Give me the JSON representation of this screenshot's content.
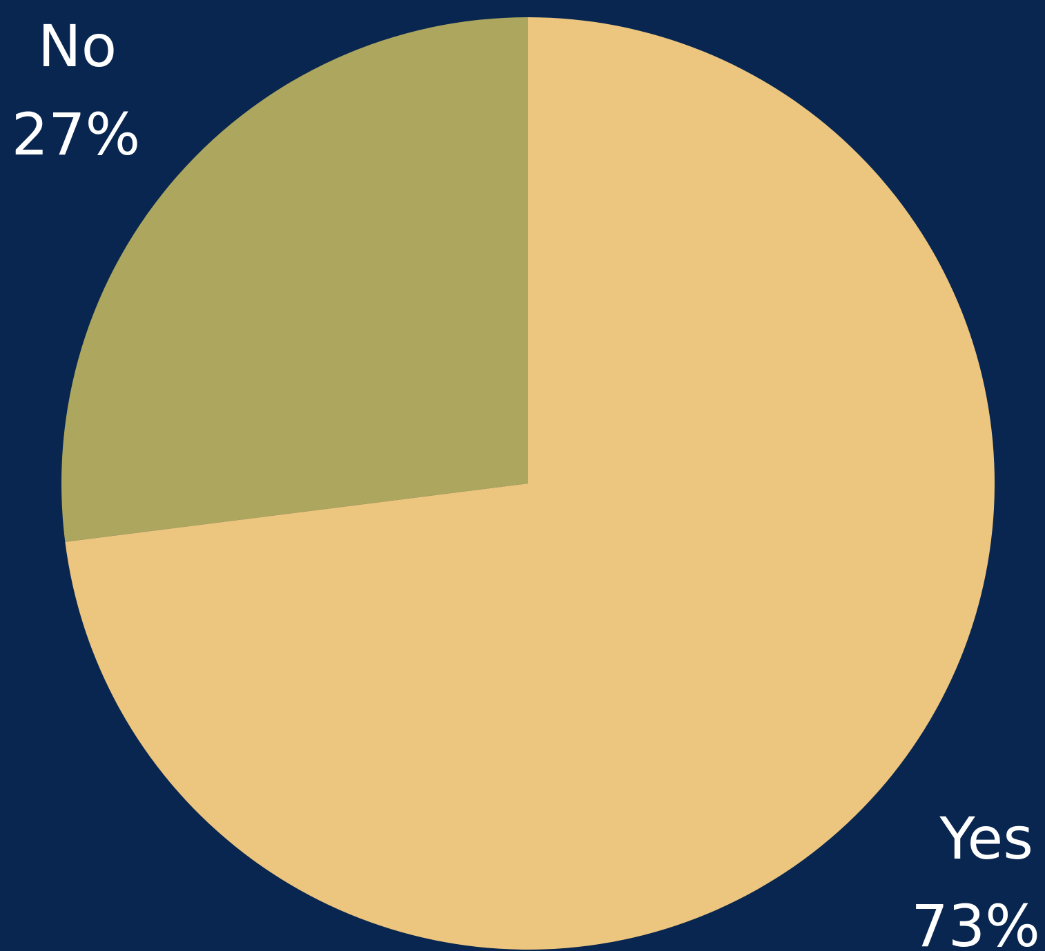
{
  "colors": {
    "background": "#08264f",
    "yes": "#ecc57f",
    "no": "#aca65e",
    "label_text": "#ffffff"
  },
  "chart_data": {
    "type": "pie",
    "slices": [
      {
        "label": "Yes",
        "value": 73,
        "value_label": "73%",
        "color": "#ecc57f"
      },
      {
        "label": "No",
        "value": 27,
        "value_label": "27%",
        "color": "#aca65e"
      }
    ],
    "start_angle_deg": 0,
    "direction": "clockwise"
  }
}
